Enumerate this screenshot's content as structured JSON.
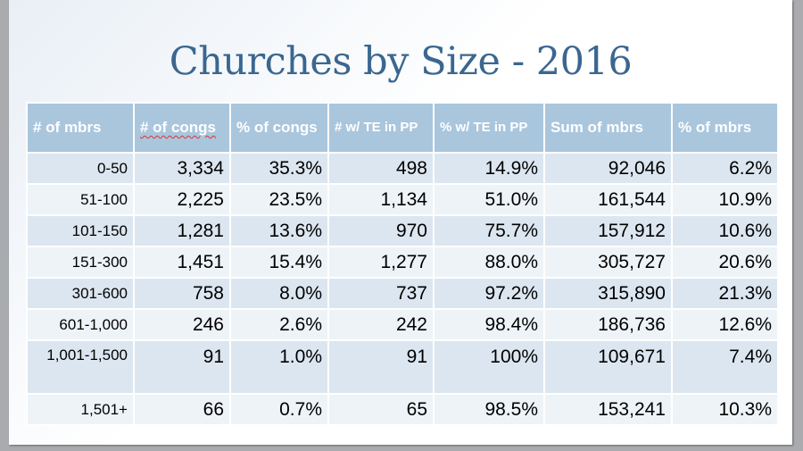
{
  "title": "Churches by Size - 2016",
  "table": {
    "headers": [
      "# of mbrs",
      "# of congs",
      "% of congs",
      "# w/ TE in PP",
      "% w/ TE in PP",
      "Sum of mbrs",
      "% of mbrs"
    ],
    "rows": [
      [
        "0-50",
        "3,334",
        "35.3%",
        "498",
        "14.9%",
        "92,046",
        "6.2%"
      ],
      [
        "51-100",
        "2,225",
        "23.5%",
        "1,134",
        "51.0%",
        "161,544",
        "10.9%"
      ],
      [
        "101-150",
        "1,281",
        "13.6%",
        "970",
        "75.7%",
        "157,912",
        "10.6%"
      ],
      [
        "151-300",
        "1,451",
        "15.4%",
        "1,277",
        "88.0%",
        "305,727",
        "20.6%"
      ],
      [
        "301-600",
        "758",
        "8.0%",
        "737",
        "97.2%",
        "315,890",
        "21.3%"
      ],
      [
        "601-1,000",
        "246",
        "2.6%",
        "242",
        "98.4%",
        "186,736",
        "12.6%"
      ],
      [
        "1,001-1,500",
        "91",
        "1.0%",
        "91",
        "100%",
        "109,671",
        "7.4%"
      ],
      [
        "1,501+",
        "66",
        "0.7%",
        "65",
        "98.5%",
        "153,241",
        "10.3%"
      ]
    ]
  }
}
